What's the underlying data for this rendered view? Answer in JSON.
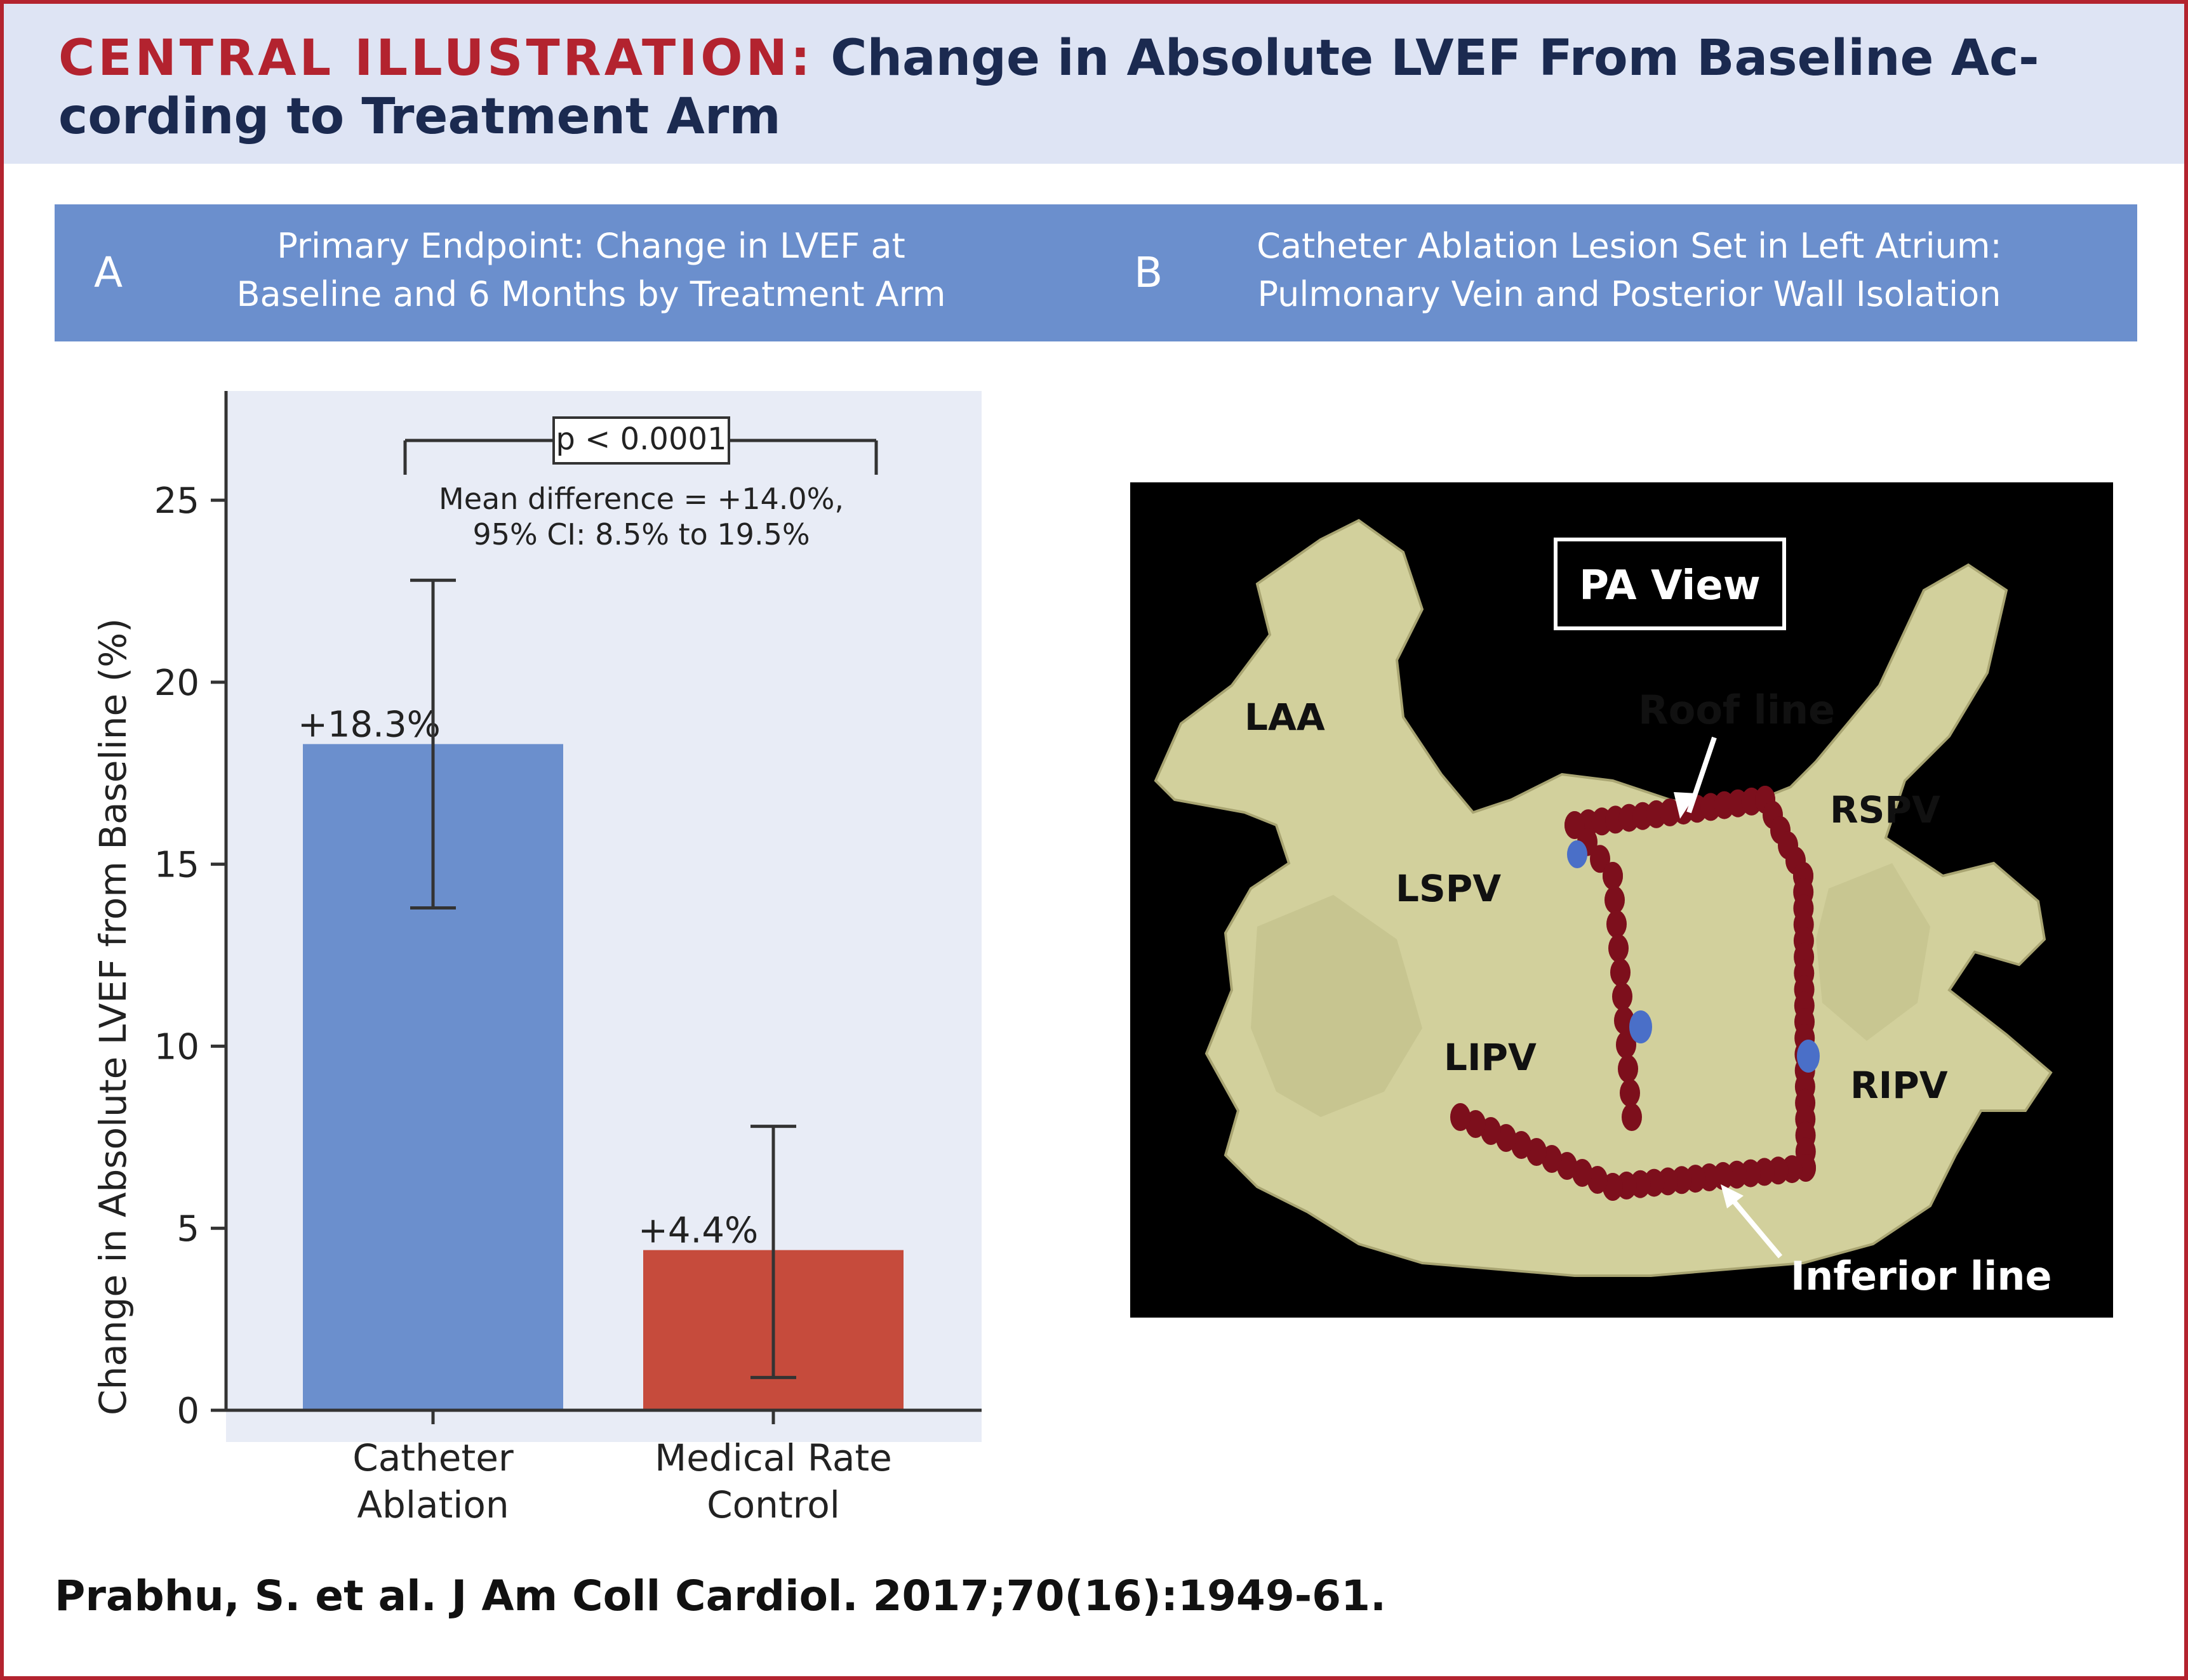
{
  "header": {
    "tag": "CENTRAL ILLUSTRATION:",
    "title_line1": "Change in Absolute LVEF From Baseline Ac-",
    "title_line2": "cording to Treatment Arm"
  },
  "panel_a": {
    "letter": "A",
    "title_line1": "Primary Endpoint: Change in LVEF at",
    "title_line2": "Baseline and 6 Months by Treatment Arm"
  },
  "panel_b": {
    "letter": "B",
    "title_line1": "Catheter Ablation Lesion Set in Left Atrium:",
    "title_line2": "Pulmonary Vein and Posterior Wall Isolation",
    "image": {
      "view_label": "PA View",
      "labels": {
        "laa": "LAA",
        "lspv": "LSPV",
        "lipv": "LIPV",
        "rspv": "RSPV",
        "ripv": "RIPV",
        "roof_line": "Roof line",
        "inferior_line": "Inferior line"
      },
      "colors": {
        "background": "#000000",
        "tissue": "#d2d09c",
        "lesion": "#7d0f1c",
        "marker": "#4a6fc8"
      }
    }
  },
  "chart_data": {
    "type": "bar",
    "categories": [
      [
        "Catheter",
        "Ablation"
      ],
      [
        "Medical Rate",
        "Control"
      ]
    ],
    "values": [
      18.3,
      4.4
    ],
    "value_labels": [
      "+18.3%",
      "+4.4%"
    ],
    "error_bars": [
      [
        13.8,
        22.8
      ],
      [
        0.9,
        7.8
      ]
    ],
    "colors": [
      "#6b8fcd",
      "#c64b3c"
    ],
    "ylabel": "Change in Absolute LVEF from Baseline (%)",
    "xlabel": "",
    "ylim": [
      0,
      28
    ],
    "yticks": [
      0,
      5,
      10,
      15,
      20,
      25
    ],
    "background": "#e8ecf6",
    "significance": {
      "p_label": "p < 0.0001",
      "annotation_line1": "Mean difference = +14.0%,",
      "annotation_line2": "95% CI: 8.5% to 19.5%"
    }
  },
  "citation": "Prabhu, S. et al. J Am Coll Cardiol. 2017;70(16):1949-61."
}
